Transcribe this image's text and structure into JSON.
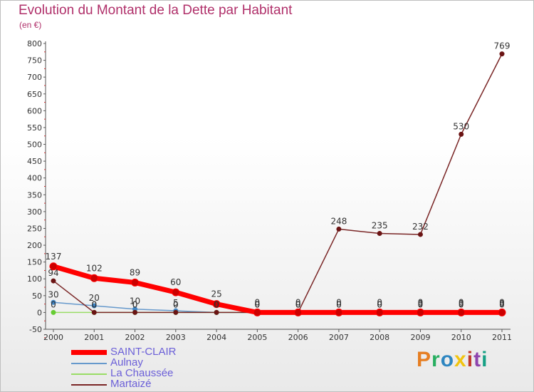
{
  "title": "Evolution du Montant de la Dette par Habitant",
  "subtitle": "(en €)",
  "brand": "Proxiti",
  "colors": {
    "title": "#b0306a",
    "legend_text": "#6b5fd8",
    "saint_clair": "#ff0000",
    "aulnay": "#6699cc",
    "la_chaussee": "#99dd66",
    "martaize": "#7a2626"
  },
  "chart_data": {
    "type": "line",
    "title": "Evolution du Montant de la Dette par Habitant",
    "ylabel": "(en €)",
    "xlabel": "",
    "categories": [
      "2000",
      "2001",
      "2002",
      "2003",
      "2004",
      "2005",
      "2006",
      "2007",
      "2008",
      "2009",
      "2010",
      "2011"
    ],
    "ylim": [
      -50,
      800
    ],
    "yticks": [
      -50,
      0,
      50,
      100,
      150,
      200,
      250,
      300,
      350,
      400,
      450,
      500,
      550,
      600,
      650,
      700,
      750,
      800
    ],
    "grid": false,
    "legend_position": "bottom-left",
    "series": [
      {
        "name": "SAINT-CLAIR",
        "values": [
          137,
          102,
          89,
          60,
          25,
          0,
          0,
          0,
          0,
          0,
          0,
          0
        ],
        "labels": [
          "137",
          "102",
          "89",
          "60",
          "25",
          "0",
          "0",
          "0",
          "0",
          "0",
          "0",
          "0"
        ]
      },
      {
        "name": "Aulnay",
        "values": [
          30,
          20,
          10,
          5,
          0,
          0,
          0,
          0,
          0,
          0,
          0,
          0
        ],
        "labels": [
          "30",
          "20",
          "10",
          "5",
          "0",
          "0",
          "0",
          "0",
          "0",
          "0",
          "0",
          "0"
        ]
      },
      {
        "name": "La Chaussée",
        "values": [
          0,
          0,
          0,
          0,
          0,
          0,
          0,
          0,
          0,
          3,
          3,
          3
        ],
        "labels": [
          "0",
          "0",
          "0",
          "0",
          "0",
          "0",
          "0",
          "0",
          "0",
          "3",
          "3",
          "3"
        ]
      },
      {
        "name": "Martaizé",
        "values": [
          94,
          0,
          0,
          0,
          0,
          0,
          0,
          248,
          235,
          232,
          530,
          769
        ],
        "labels": [
          "94",
          "0",
          "0",
          "0",
          "0",
          "0",
          "0",
          "248",
          "235",
          "232",
          "530",
          "769"
        ]
      }
    ]
  }
}
